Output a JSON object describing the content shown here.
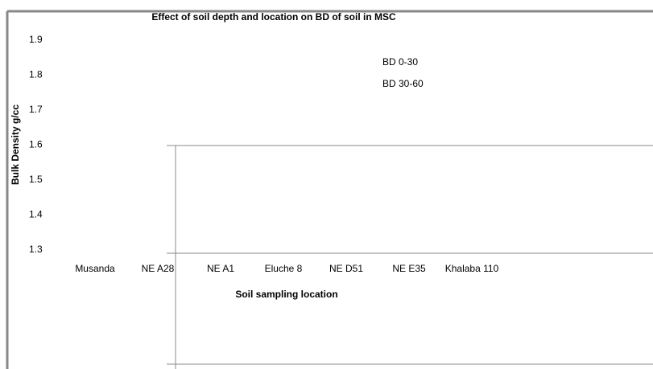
{
  "chart_data": {
    "type": "bar",
    "title": "Effect of soil depth and location on BD of soil in MSC",
    "x_label": "Soil sampling location",
    "y_label": "Bulk Density g/cc",
    "categories": [
      "Musanda",
      "NE A28",
      "NE A1",
      "Eluche 8",
      "NE D51",
      "NE E35",
      "Khalaba 110"
    ],
    "series": [
      {
        "name": "BD 0-30",
        "values": [
          null,
          null,
          null,
          null,
          null,
          null,
          null
        ]
      },
      {
        "name": "BD 30-60",
        "values": [
          null,
          null,
          null,
          null,
          null,
          null,
          null
        ]
      }
    ],
    "ylim": [
      1.3,
      1.9
    ],
    "yticks": [
      1.3,
      1.4,
      1.5,
      1.6,
      1.7,
      1.8,
      1.9
    ],
    "grid": false
  }
}
